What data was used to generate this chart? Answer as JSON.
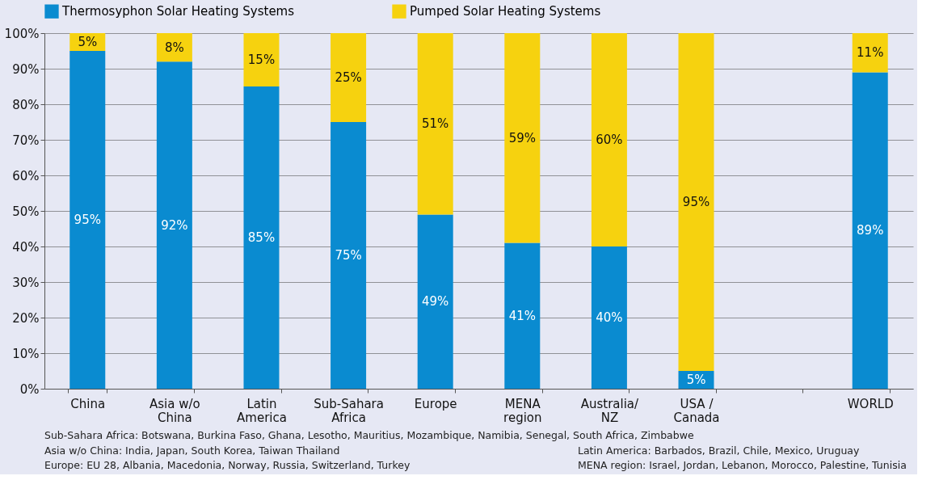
{
  "chart_data": {
    "type": "bar",
    "stacked": true,
    "categories": [
      "China",
      "Asia w/o\nChina",
      "Latin\nAmerica",
      "Sub-Sahara\nAfrica",
      "Europe",
      "MENA\nregion",
      "Australia/\nNZ",
      "USA /\nCanada",
      null,
      "WORLD"
    ],
    "series": [
      {
        "name": "Thermosyphon Solar Heating Systems",
        "color": "#0a8bd0",
        "values": [
          95,
          92,
          85,
          75,
          49,
          41,
          40,
          5,
          null,
          89
        ],
        "value_labels": [
          "95%",
          "92%",
          "85%",
          "75%",
          "49%",
          "41%",
          "40%",
          "5%",
          null,
          "89%"
        ]
      },
      {
        "name": "Pumped Solar Heating Systems",
        "color": "#f6d20f",
        "values": [
          5,
          8,
          15,
          25,
          51,
          59,
          60,
          95,
          null,
          11
        ],
        "value_labels": [
          "5%",
          "8%",
          "15%",
          "25%",
          "51%",
          "59%",
          "60%",
          "95%",
          null,
          "11%"
        ]
      }
    ],
    "ylim": [
      0,
      100
    ],
    "yticks": [
      {
        "value": 0,
        "label": "0%"
      },
      {
        "value": 10,
        "label": "10%"
      },
      {
        "value": 20,
        "label": "20%"
      },
      {
        "value": 30,
        "label": "30%"
      },
      {
        "value": 40,
        "label": "40%"
      },
      {
        "value": 50,
        "label": "50%"
      },
      {
        "value": 60,
        "label": "60%"
      },
      {
        "value": 70,
        "label": "70%"
      },
      {
        "value": 80,
        "label": "80%"
      },
      {
        "value": 90,
        "label": "90%"
      },
      {
        "value": 100,
        "label": "100%"
      }
    ],
    "grid": "y",
    "legend": "top",
    "annotations": [
      "Sub-Sahara Africa: Botswana, Burkina Faso, Ghana, Lesotho, Mauritius, Mozambique, Namibia, Senegal, South Africa, Zimbabwe",
      "Asia w/o China: India, Japan, South Korea, Taiwan Thailand",
      "Latin America: Barbados, Brazil, Chile, Mexico, Uruguay",
      "Europe: EU 28, Albania, Macedonia, Norway, Russia, Switzerland, Turkey",
      "MENA region: Israel, Jordan, Lebanon, Morocco, Palestine, Tunisia"
    ]
  }
}
